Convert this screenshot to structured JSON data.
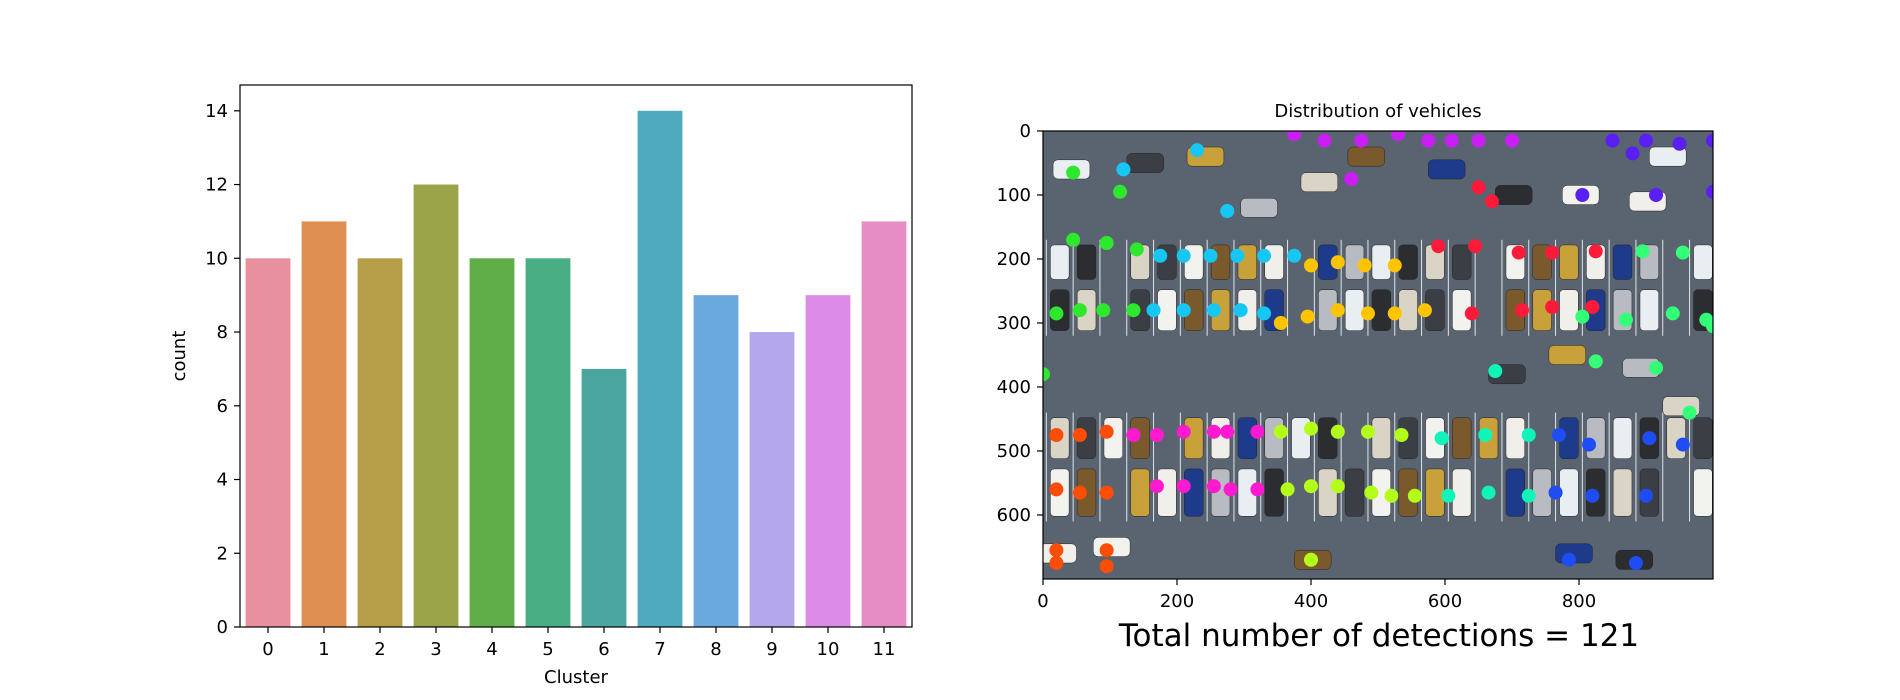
{
  "chart_data": [
    {
      "type": "bar",
      "categories": [
        "0",
        "1",
        "2",
        "3",
        "4",
        "5",
        "6",
        "7",
        "8",
        "9",
        "10",
        "11"
      ],
      "values": [
        10,
        11,
        10,
        12,
        10,
        10,
        7,
        14,
        9,
        8,
        9,
        11
      ],
      "colors": [
        "#e8909e",
        "#df8e52",
        "#b79f4a",
        "#9aa347",
        "#5fae47",
        "#4aae85",
        "#4aa69f",
        "#4eabbf",
        "#6aa9de",
        "#b5a7ec",
        "#dc8ce6",
        "#e78dc5"
      ],
      "xlabel": "Cluster",
      "ylabel": "count",
      "ylim": [
        0,
        14.7
      ],
      "yticks": [
        0,
        2,
        4,
        6,
        8,
        10,
        12,
        14
      ],
      "grid": false
    },
    {
      "type": "scatter",
      "title": "Distribution of vehicles",
      "xlim": [
        0,
        1000
      ],
      "ylim": [
        700,
        0
      ],
      "xticks": [
        0,
        200,
        400,
        600,
        800
      ],
      "yticks": [
        0,
        100,
        200,
        300,
        400,
        500,
        600
      ],
      "background": "aerial photo of a parking lot",
      "total_detections": "Total number of detections = 121",
      "clusters": [
        {
          "cluster": "0",
          "color": "#ff4d05",
          "points": [
            [
              20,
              475
            ],
            [
              55,
              475
            ],
            [
              95,
              470
            ],
            [
              20,
              560
            ],
            [
              55,
              565
            ],
            [
              95,
              565
            ],
            [
              20,
              655
            ],
            [
              20,
              675
            ],
            [
              95,
              655
            ],
            [
              95,
              680
            ]
          ]
        },
        {
          "cluster": "1",
          "color": "#ff1a3a",
          "points": [
            [
              650,
              88
            ],
            [
              670,
              110
            ],
            [
              590,
              180
            ],
            [
              645,
              180
            ],
            [
              710,
              190
            ],
            [
              760,
              190
            ],
            [
              825,
              188
            ],
            [
              640,
              285
            ],
            [
              715,
              280
            ],
            [
              760,
              275
            ],
            [
              820,
              275
            ]
          ]
        },
        {
          "cluster": "2",
          "color": "#ffc400",
          "points": [
            [
              355,
              300
            ],
            [
              395,
              290
            ],
            [
              440,
              280
            ],
            [
              485,
              285
            ],
            [
              525,
              285
            ],
            [
              400,
              210
            ],
            [
              440,
              205
            ],
            [
              480,
              210
            ],
            [
              525,
              210
            ],
            [
              570,
              280
            ]
          ]
        },
        {
          "cluster": "3",
          "color": "#b4ff1a",
          "points": [
            [
              355,
              470
            ],
            [
              400,
              465
            ],
            [
              440,
              470
            ],
            [
              485,
              470
            ],
            [
              535,
              475
            ],
            [
              400,
              555
            ],
            [
              440,
              555
            ],
            [
              490,
              565
            ],
            [
              520,
              570
            ],
            [
              555,
              570
            ],
            [
              400,
              670
            ],
            [
              365,
              560
            ]
          ]
        },
        {
          "cluster": "4",
          "color": "#2ee82e",
          "points": [
            [
              45,
              65
            ],
            [
              115,
              95
            ],
            [
              45,
              170
            ],
            [
              95,
              175
            ],
            [
              140,
              185
            ],
            [
              20,
              285
            ],
            [
              55,
              280
            ],
            [
              90,
              280
            ],
            [
              135,
              280
            ],
            [
              0,
              380
            ]
          ]
        },
        {
          "cluster": "5",
          "color": "#33ff77",
          "points": [
            [
              805,
              290
            ],
            [
              870,
              295
            ],
            [
              940,
              285
            ],
            [
              990,
              295
            ],
            [
              825,
              360
            ],
            [
              915,
              370
            ],
            [
              965,
              440
            ],
            [
              895,
              188
            ],
            [
              955,
              190
            ],
            [
              1000,
              305
            ]
          ]
        },
        {
          "cluster": "6",
          "color": "#10f5b7",
          "points": [
            [
              595,
              480
            ],
            [
              660,
              475
            ],
            [
              725,
              475
            ],
            [
              605,
              570
            ],
            [
              665,
              565
            ],
            [
              725,
              570
            ],
            [
              675,
              375
            ]
          ]
        },
        {
          "cluster": "7",
          "color": "#16c7f5",
          "points": [
            [
              175,
              195
            ],
            [
              210,
              195
            ],
            [
              250,
              195
            ],
            [
              290,
              195
            ],
            [
              330,
              195
            ],
            [
              375,
              195
            ],
            [
              165,
              280
            ],
            [
              210,
              280
            ],
            [
              255,
              280
            ],
            [
              295,
              280
            ],
            [
              330,
              285
            ],
            [
              120,
              60
            ],
            [
              230,
              30
            ],
            [
              275,
              125
            ]
          ]
        },
        {
          "cluster": "8",
          "color": "#1f4df5",
          "points": [
            [
              770,
              475
            ],
            [
              815,
              490
            ],
            [
              905,
              480
            ],
            [
              955,
              490
            ],
            [
              765,
              565
            ],
            [
              820,
              570
            ],
            [
              900,
              570
            ],
            [
              785,
              670
            ],
            [
              885,
              675
            ]
          ]
        },
        {
          "cluster": "9",
          "color": "#5a1ff5",
          "points": [
            [
              850,
              15
            ],
            [
              900,
              15
            ],
            [
              950,
              20
            ],
            [
              1000,
              15
            ],
            [
              805,
              100
            ],
            [
              915,
              100
            ],
            [
              1000,
              95
            ],
            [
              880,
              35
            ]
          ]
        },
        {
          "cluster": "10",
          "color": "#c91ff5",
          "points": [
            [
              375,
              5
            ],
            [
              420,
              15
            ],
            [
              475,
              15
            ],
            [
              530,
              5
            ],
            [
              575,
              15
            ],
            [
              610,
              15
            ],
            [
              650,
              15
            ],
            [
              700,
              15
            ],
            [
              460,
              75
            ]
          ]
        },
        {
          "cluster": "11",
          "color": "#ff1ad0",
          "points": [
            [
              135,
              475
            ],
            [
              170,
              475
            ],
            [
              210,
              470
            ],
            [
              255,
              470
            ],
            [
              275,
              470
            ],
            [
              320,
              470
            ],
            [
              170,
              555
            ],
            [
              210,
              555
            ],
            [
              255,
              555
            ],
            [
              280,
              560
            ],
            [
              320,
              560
            ]
          ]
        }
      ]
    }
  ]
}
